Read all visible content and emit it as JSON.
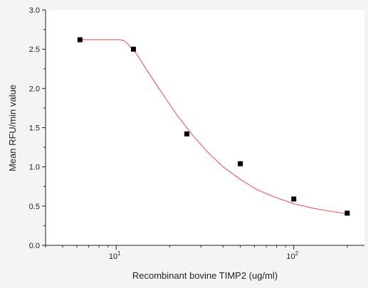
{
  "chart_data": {
    "type": "scatter",
    "xscale": "log",
    "xlim": [
      4,
      250
    ],
    "ylim": [
      0,
      3.0
    ],
    "xlabel": "Recombinant bovine TIMP2 (ug/ml)",
    "ylabel": "Mean RFU/min value",
    "x_ticks": [
      {
        "value": 10,
        "base": "10",
        "exp": "1"
      },
      {
        "value": 100,
        "base": "10",
        "exp": "2"
      }
    ],
    "y_ticks": [
      "0.0",
      "0.5",
      "1.0",
      "1.5",
      "2.0",
      "2.5",
      "3.0"
    ],
    "grid": false,
    "points": [
      {
        "x": 6.25,
        "y": 2.62
      },
      {
        "x": 12.5,
        "y": 2.5
      },
      {
        "x": 25,
        "y": 1.42
      },
      {
        "x": 50,
        "y": 1.04
      },
      {
        "x": 100,
        "y": 0.59
      },
      {
        "x": 200,
        "y": 0.41
      }
    ],
    "fit_curve": [
      {
        "x": 6.25,
        "y": 2.62
      },
      {
        "x": 10.5,
        "y": 2.62
      },
      {
        "x": 11.0,
        "y": 2.61
      },
      {
        "x": 11.5,
        "y": 2.58
      },
      {
        "x": 12.0,
        "y": 2.53
      },
      {
        "x": 13.0,
        "y": 2.44
      },
      {
        "x": 15.0,
        "y": 2.22
      },
      {
        "x": 18.0,
        "y": 1.95
      },
      {
        "x": 22.0,
        "y": 1.66
      },
      {
        "x": 27.0,
        "y": 1.4
      },
      {
        "x": 33.0,
        "y": 1.18
      },
      {
        "x": 40.0,
        "y": 1.0
      },
      {
        "x": 50.0,
        "y": 0.84
      },
      {
        "x": 62.0,
        "y": 0.71
      },
      {
        "x": 77.0,
        "y": 0.62
      },
      {
        "x": 100.0,
        "y": 0.53
      },
      {
        "x": 130.0,
        "y": 0.47
      },
      {
        "x": 165.0,
        "y": 0.43
      },
      {
        "x": 200.0,
        "y": 0.4
      }
    ],
    "colors": {
      "points": "#000000",
      "curve": "#e84a4a",
      "axis": "#222222",
      "background": "#ffffff"
    }
  }
}
